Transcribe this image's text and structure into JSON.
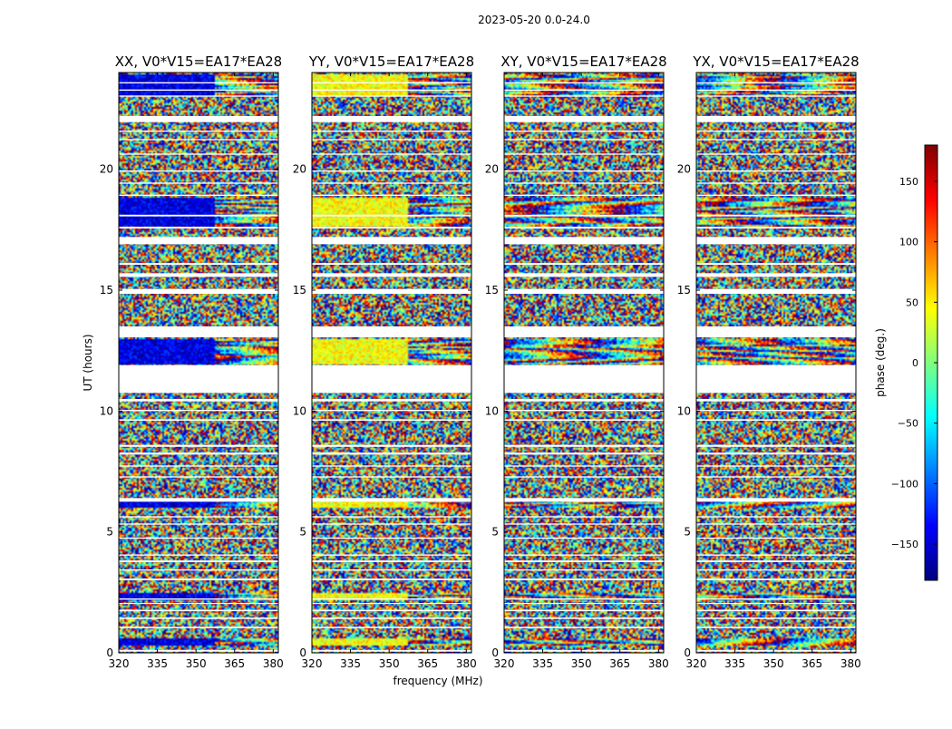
{
  "figure": {
    "suptitle": "2023-05-20 0.0-24.0",
    "xlabel": "frequency (MHz)",
    "ylabel": "UT (hours)"
  },
  "colorbar": {
    "label": "phase (deg.)",
    "range": [
      -180,
      180
    ],
    "ticks": [
      "150",
      "100",
      "50",
      "0",
      "−50",
      "−100",
      "−150"
    ],
    "tick_values": [
      150,
      100,
      50,
      0,
      -50,
      -100,
      -150
    ],
    "colormap": "jet",
    "colors": [
      "#00007f",
      "#0000ff",
      "#007fff",
      "#00ffff",
      "#7fff7f",
      "#ffff00",
      "#ff7f00",
      "#ff0000",
      "#7f0000"
    ]
  },
  "chart_data": {
    "type": "heatmap",
    "title": "2023-05-20 0.0-24.0",
    "xlabel": "frequency (MHz)",
    "ylabel": "UT (hours)",
    "xlim": [
      320,
      382
    ],
    "ylim": [
      0,
      24
    ],
    "xticks": [
      320,
      335,
      350,
      365,
      380
    ],
    "yticks": [
      0,
      5,
      10,
      15,
      20
    ],
    "zlabel": "phase (deg.)",
    "zlim": [
      -180,
      180
    ],
    "panels": [
      {
        "title": "XX, V0*V15=EA17*EA28",
        "pol": "XX"
      },
      {
        "title": "YY, V0*V15=EA17*EA28",
        "pol": "YY"
      },
      {
        "title": "XY, V0*V15=EA17*EA28",
        "pol": "XY"
      },
      {
        "title": "YX, V0*V15=EA17*EA28",
        "pol": "YX"
      }
    ],
    "flagged_time_ranges_hours": [
      [
        0.05,
        0.12
      ],
      [
        1.02,
        1.08
      ],
      [
        1.4,
        1.46
      ],
      [
        1.72,
        1.78
      ],
      [
        2.02,
        2.06
      ],
      [
        2.2,
        2.25
      ],
      [
        3.0,
        3.07
      ],
      [
        3.4,
        3.45
      ],
      [
        3.75,
        3.82
      ],
      [
        4.02,
        4.07
      ],
      [
        4.72,
        4.77
      ],
      [
        5.3,
        5.35
      ],
      [
        5.6,
        5.65
      ],
      [
        6.25,
        6.4
      ],
      [
        7.25,
        7.3
      ],
      [
        7.7,
        7.75
      ],
      [
        8.2,
        8.28
      ],
      [
        8.52,
        8.6
      ],
      [
        9.6,
        9.66
      ],
      [
        10.0,
        10.05
      ],
      [
        10.4,
        10.5
      ],
      [
        10.75,
        11.9
      ],
      [
        13.05,
        13.5
      ],
      [
        14.85,
        15.05
      ],
      [
        15.55,
        15.7
      ],
      [
        16.05,
        16.12
      ],
      [
        16.9,
        17.2
      ],
      [
        17.55,
        17.62
      ],
      [
        18.05,
        18.12
      ],
      [
        18.9,
        18.95
      ],
      [
        19.4,
        19.45
      ],
      [
        19.9,
        19.95
      ],
      [
        20.6,
        20.65
      ],
      [
        21.2,
        21.25
      ],
      [
        21.55,
        21.6
      ],
      [
        21.95,
        22.2
      ],
      [
        23.0,
        23.05
      ],
      [
        23.25,
        23.3
      ],
      [
        23.55,
        23.6
      ]
    ],
    "coherent_time_ranges_hours": [
      [
        0.3,
        0.6
      ],
      [
        2.2,
        2.5
      ],
      [
        6.0,
        6.3
      ],
      [
        11.95,
        12.95
      ],
      [
        17.6,
        18.8
      ],
      [
        23.0,
        23.9
      ]
    ]
  }
}
